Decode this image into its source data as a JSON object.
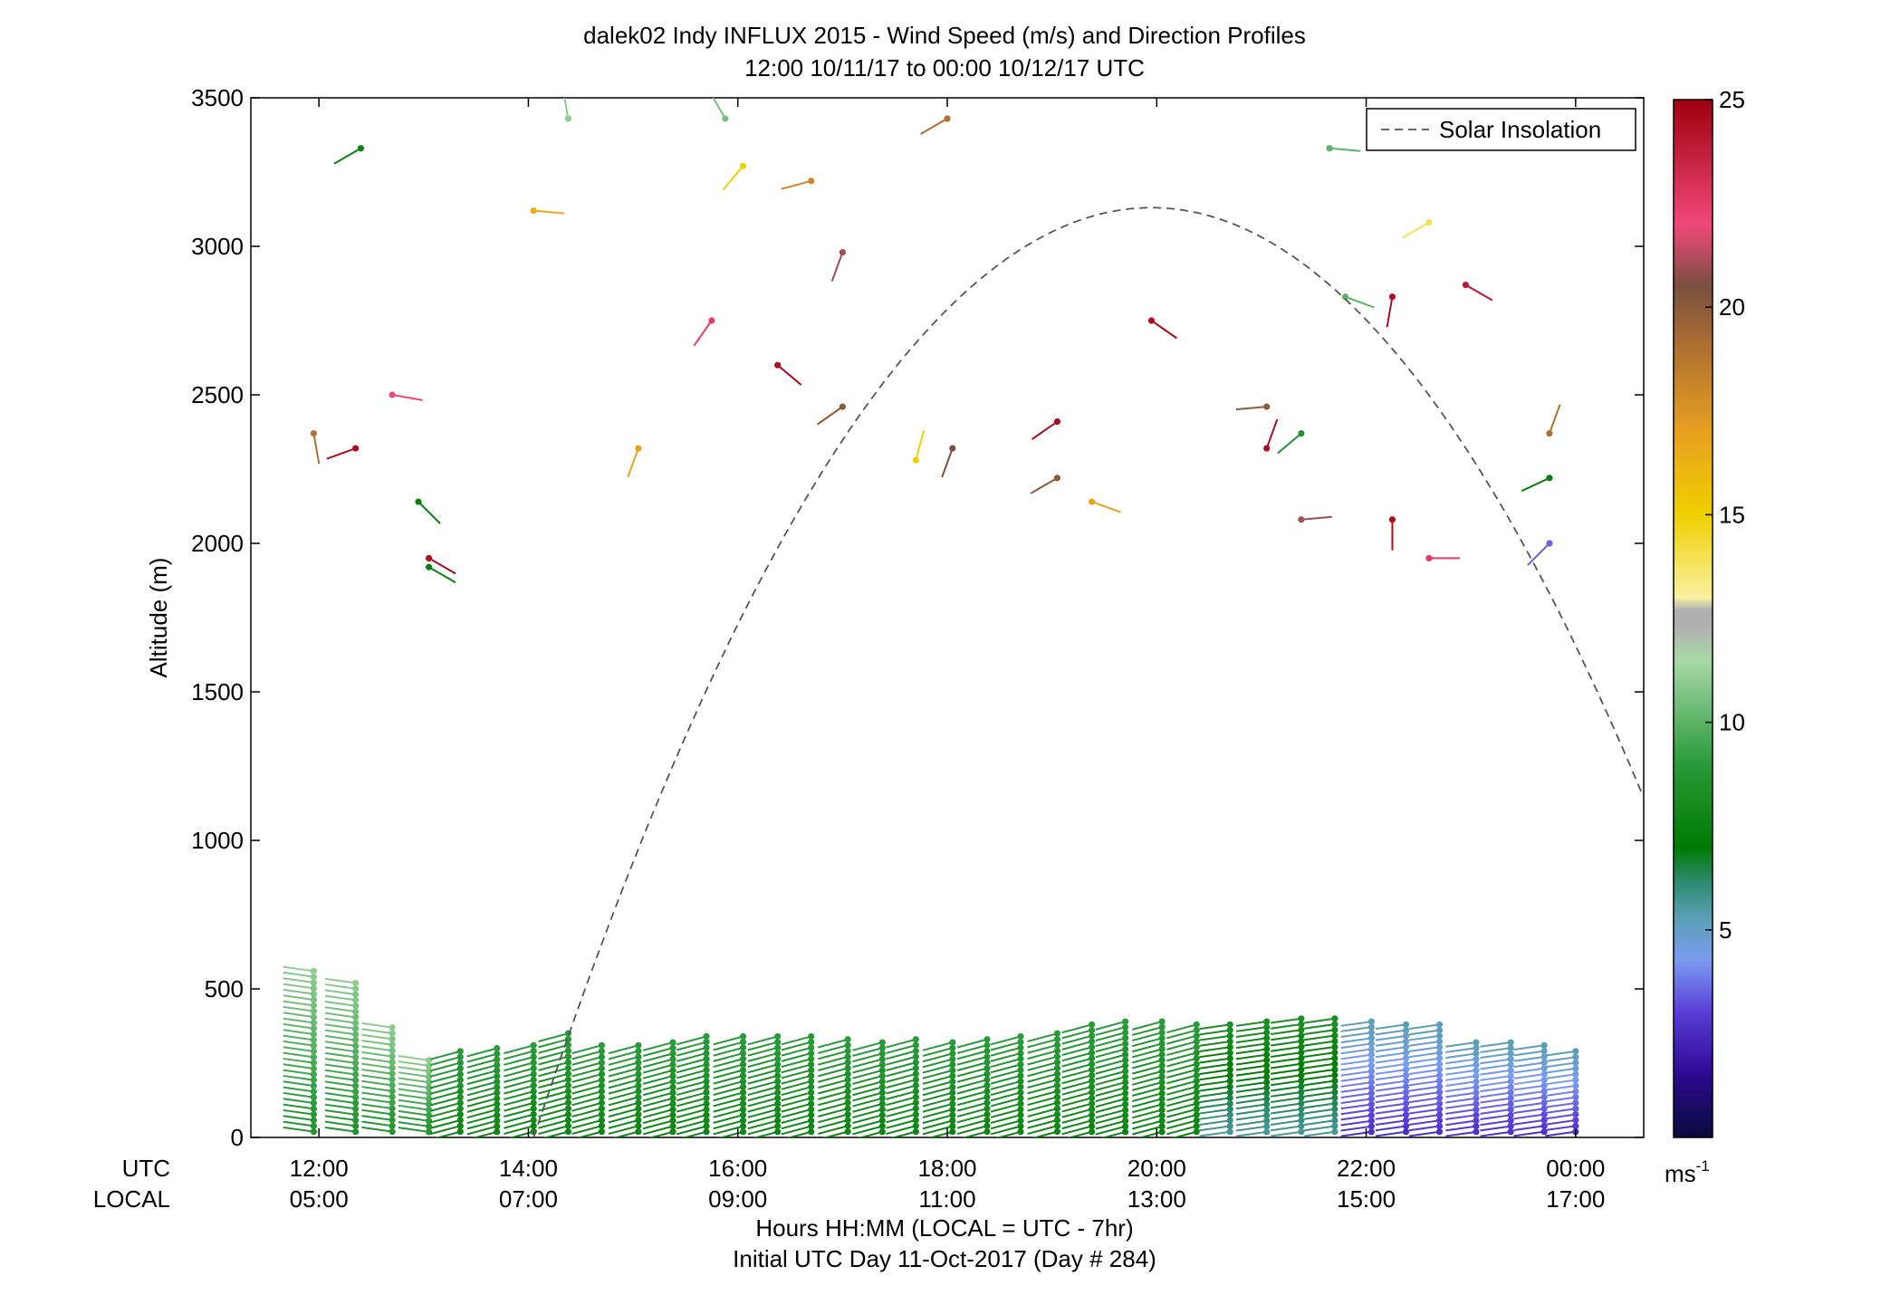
{
  "chart_data": {
    "type": "scatter",
    "title": "dalek02 Indy INFLUX 2015 - Wind Speed (m/s) and Direction Profiles",
    "subtitle": "12:00 10/11/17 to 00:00 10/12/17  UTC",
    "ylabel": "Altitude (m)",
    "ylim": [
      0,
      3500
    ],
    "yticks": [
      0,
      500,
      1000,
      1500,
      2000,
      2500,
      3000,
      3500
    ],
    "xlim_hours": [
      11.35,
      24.65
    ],
    "x_row_labels": [
      "UTC",
      "LOCAL"
    ],
    "xticks_hours": [
      12,
      14,
      16,
      18,
      20,
      22,
      24
    ],
    "xtick_utc_labels": [
      "12:00",
      "14:00",
      "16:00",
      "18:00",
      "20:00",
      "22:00",
      "00:00"
    ],
    "xtick_local_labels": [
      "05:00",
      "07:00",
      "09:00",
      "11:00",
      "13:00",
      "15:00",
      "17:00"
    ],
    "xlabel": "Hours HH:MM  (LOCAL = UTC - 7hr)",
    "xlabel2": "Initial UTC Day 11-Oct-2017 (Day # 284)",
    "legend": {
      "label": "Solar Insolation",
      "position": "top-right"
    },
    "colorbar": {
      "range": [
        0,
        25
      ],
      "ticks": [
        5,
        10,
        15,
        20,
        25
      ],
      "unit_base": "ms",
      "unit_sup": "-1",
      "stops": [
        {
          "v": 0,
          "c": "#0a0a3c"
        },
        {
          "v": 1.5,
          "c": "#2a0a90"
        },
        {
          "v": 3,
          "c": "#5a3cd8"
        },
        {
          "v": 4.3,
          "c": "#7a9cf0"
        },
        {
          "v": 5.3,
          "c": "#5aa0b4"
        },
        {
          "v": 6.2,
          "c": "#2a8a6a"
        },
        {
          "v": 7,
          "c": "#007a00"
        },
        {
          "v": 9,
          "c": "#2a9a3a"
        },
        {
          "v": 11.5,
          "c": "#a8d8a8"
        },
        {
          "v": 12.3,
          "c": "#b0b0b0"
        },
        {
          "v": 12.7,
          "c": "#b0b0b0"
        },
        {
          "v": 13,
          "c": "#f8f0a0"
        },
        {
          "v": 15,
          "c": "#f0d000"
        },
        {
          "v": 17,
          "c": "#e8a020"
        },
        {
          "v": 19,
          "c": "#b07030"
        },
        {
          "v": 20.5,
          "c": "#7a5040"
        },
        {
          "v": 22,
          "c": "#f04878"
        },
        {
          "v": 25,
          "c": "#a00010"
        }
      ]
    },
    "solar_insolation": {
      "peak_hour": 19.95,
      "peak_alt": 3130,
      "zero_hour_start": 14.05,
      "end_hour": 24.65,
      "end_alt": 970
    },
    "profile_times_hours": [
      11.95,
      12.35,
      12.7,
      13.05,
      13.35,
      13.7,
      14.05,
      14.38,
      14.7,
      15.05,
      15.38,
      15.7,
      16.05,
      16.38,
      16.7,
      17.05,
      17.38,
      17.7,
      18.05,
      18.38,
      18.7,
      19.05,
      19.38,
      19.7,
      20.05,
      20.38,
      20.7,
      21.05,
      21.38,
      21.7,
      22.05,
      22.38,
      22.7,
      23.05,
      23.38,
      23.7,
      24.0
    ],
    "profile_tops_m": [
      560,
      520,
      370,
      260,
      290,
      300,
      310,
      350,
      310,
      310,
      320,
      340,
      340,
      340,
      340,
      330,
      320,
      330,
      320,
      330,
      340,
      350,
      380,
      390,
      390,
      380,
      380,
      390,
      400,
      400,
      390,
      380,
      380,
      320,
      320,
      310,
      290
    ],
    "upper_barbs": [
      {
        "t": 12.4,
        "z": 3330,
        "dir": 240,
        "speed": 7.5
      },
      {
        "t": 14.38,
        "z": 3430,
        "dir": 350,
        "speed": 11
      },
      {
        "t": 15.88,
        "z": 3430,
        "dir": 330,
        "speed": 10.5
      },
      {
        "t": 16.05,
        "z": 3270,
        "dir": 220,
        "speed": 15
      },
      {
        "t": 16.7,
        "z": 3220,
        "dir": 255,
        "speed": 18
      },
      {
        "t": 18.0,
        "z": 3430,
        "dir": 240,
        "speed": 19
      },
      {
        "t": 14.05,
        "z": 3120,
        "dir": 95,
        "speed": 16.5
      },
      {
        "t": 17.0,
        "z": 2980,
        "dir": 200,
        "speed": 21
      },
      {
        "t": 21.65,
        "z": 3330,
        "dir": 95,
        "speed": 10
      },
      {
        "t": 22.6,
        "z": 3080,
        "dir": 240,
        "speed": 14
      },
      {
        "t": 21.8,
        "z": 2830,
        "dir": 110,
        "speed": 10
      },
      {
        "t": 22.25,
        "z": 2830,
        "dir": 190,
        "speed": 24.5
      },
      {
        "t": 22.95,
        "z": 2870,
        "dir": 120,
        "speed": 24
      },
      {
        "t": 15.75,
        "z": 2750,
        "dir": 215,
        "speed": 22.5
      },
      {
        "t": 16.38,
        "z": 2600,
        "dir": 130,
        "speed": 24.5
      },
      {
        "t": 19.95,
        "z": 2750,
        "dir": 125,
        "speed": 24.5
      },
      {
        "t": 11.95,
        "z": 2370,
        "dir": 170,
        "speed": 19
      },
      {
        "t": 12.35,
        "z": 2320,
        "dir": 250,
        "speed": 24.5
      },
      {
        "t": 12.7,
        "z": 2500,
        "dir": 100,
        "speed": 22
      },
      {
        "t": 15.05,
        "z": 2320,
        "dir": 200,
        "speed": 17
      },
      {
        "t": 17.0,
        "z": 2460,
        "dir": 235,
        "speed": 20
      },
      {
        "t": 17.7,
        "z": 2280,
        "dir": 15,
        "speed": 15
      },
      {
        "t": 18.05,
        "z": 2320,
        "dir": 200,
        "speed": 20.5
      },
      {
        "t": 19.05,
        "z": 2410,
        "dir": 235,
        "speed": 24.5
      },
      {
        "t": 19.05,
        "z": 2220,
        "dir": 240,
        "speed": 20
      },
      {
        "t": 19.38,
        "z": 2140,
        "dir": 110,
        "speed": 17
      },
      {
        "t": 21.05,
        "z": 2460,
        "dir": 265,
        "speed": 20
      },
      {
        "t": 21.05,
        "z": 2320,
        "dir": 20,
        "speed": 24.5
      },
      {
        "t": 21.38,
        "z": 2370,
        "dir": 230,
        "speed": 8.5
      },
      {
        "t": 23.75,
        "z": 2370,
        "dir": 20,
        "speed": 19
      },
      {
        "t": 12.95,
        "z": 2140,
        "dir": 135,
        "speed": 7.5
      },
      {
        "t": 13.05,
        "z": 1950,
        "dir": 120,
        "speed": 24.5
      },
      {
        "t": 13.05,
        "z": 1920,
        "dir": 120,
        "speed": 7.5
      },
      {
        "t": 21.38,
        "z": 2080,
        "dir": 85,
        "speed": 21
      },
      {
        "t": 22.25,
        "z": 2080,
        "dir": 180,
        "speed": 24.5
      },
      {
        "t": 22.6,
        "z": 1950,
        "dir": 90,
        "speed": 22.5
      },
      {
        "t": 23.75,
        "z": 2000,
        "dir": 225,
        "speed": 3.5
      },
      {
        "t": 23.75,
        "z": 2220,
        "dir": 245,
        "speed": 7.5
      }
    ]
  }
}
